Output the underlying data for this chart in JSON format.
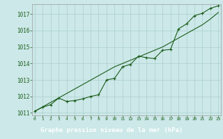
{
  "hours": [
    0,
    1,
    2,
    3,
    4,
    5,
    6,
    7,
    8,
    9,
    10,
    11,
    12,
    13,
    14,
    15,
    16,
    17,
    18,
    19,
    20,
    21,
    22,
    23
  ],
  "pressure": [
    1011.1,
    1011.35,
    1011.5,
    1011.9,
    1011.7,
    1011.75,
    1011.85,
    1012.0,
    1012.1,
    1013.0,
    1013.1,
    1013.8,
    1013.95,
    1014.45,
    1014.35,
    1014.3,
    1014.8,
    1014.85,
    1016.1,
    1016.4,
    1016.9,
    1017.05,
    1017.35,
    1017.5
  ],
  "trend": [
    1011.1,
    1011.37,
    1011.64,
    1011.91,
    1012.18,
    1012.45,
    1012.72,
    1012.99,
    1013.26,
    1013.53,
    1013.8,
    1014.0,
    1014.2,
    1014.4,
    1014.6,
    1014.8,
    1015.0,
    1015.27,
    1015.54,
    1015.81,
    1016.08,
    1016.35,
    1016.7,
    1017.1
  ],
  "ylim": [
    1011.0,
    1017.5
  ],
  "yticks": [
    1011,
    1012,
    1013,
    1014,
    1015,
    1016,
    1017
  ],
  "xtick_labels": [
    "0",
    "1",
    "2",
    "3",
    "4",
    "5",
    "6",
    "7",
    "8",
    "9",
    "10",
    "11",
    "12",
    "13",
    "14",
    "15",
    "16",
    "17",
    "18",
    "19",
    "20",
    "21",
    "22",
    "23"
  ],
  "line_color": "#1a5c1a",
  "bg_color": "#cce8e8",
  "grid_color": "#aacfcf",
  "xlabel": "Graphe pression niveau de la mer (hPa)",
  "xlabel_bg": "#1a6b1a",
  "xlabel_fg": "#ffffff"
}
